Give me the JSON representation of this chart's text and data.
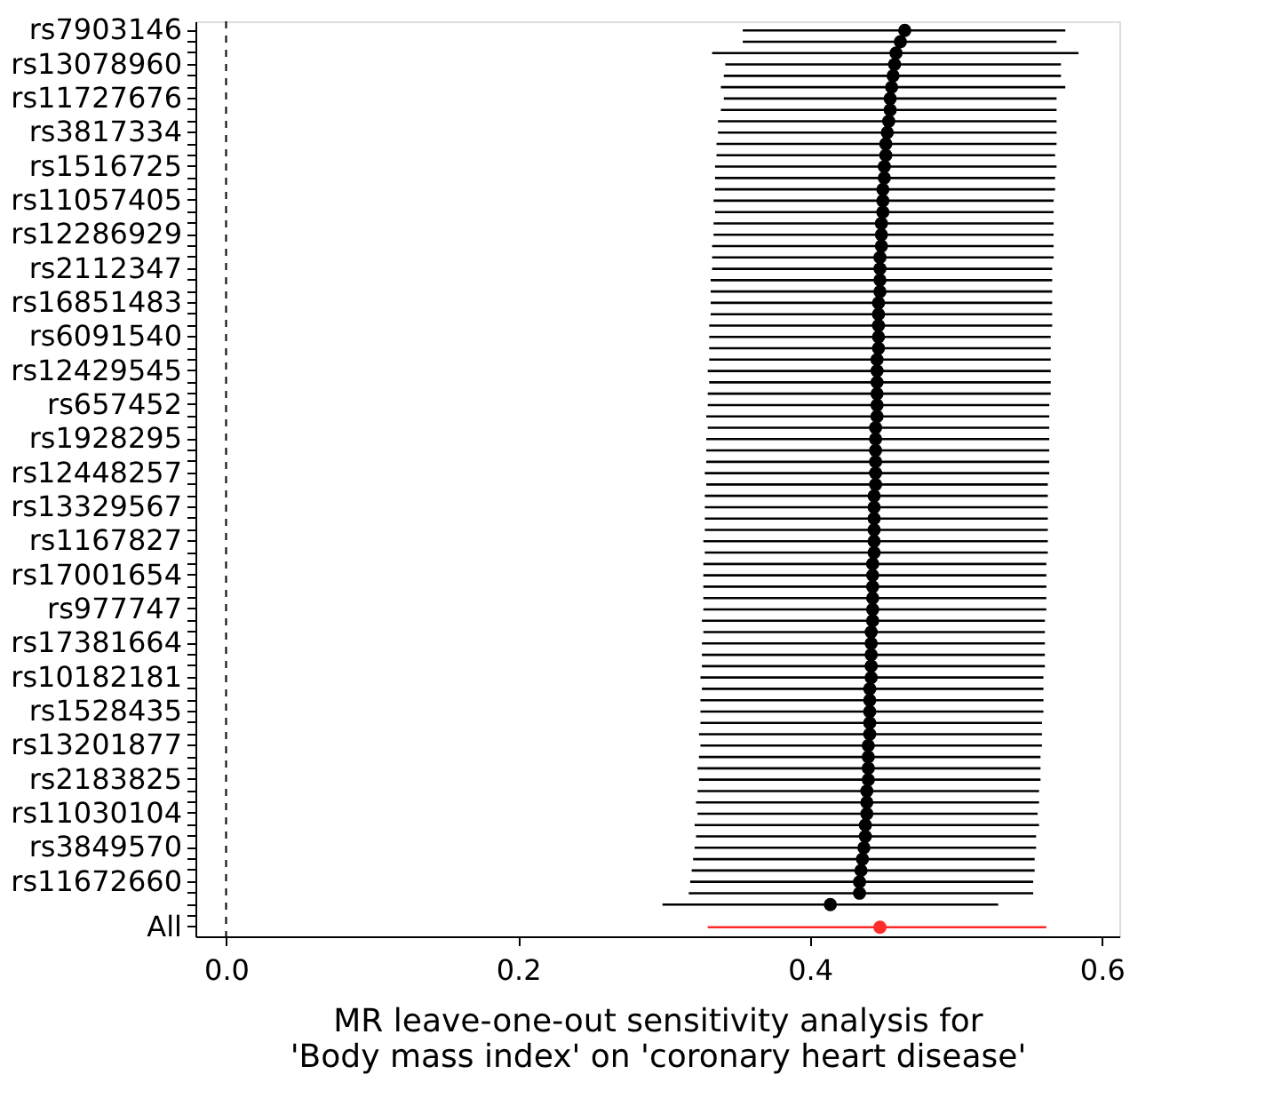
{
  "chart_data": {
    "type": "scatter",
    "categories": [
      "rs7903146",
      null,
      null,
      "rs13078960",
      null,
      null,
      "rs11727676",
      null,
      null,
      "rs3817334",
      null,
      null,
      "rs1516725",
      null,
      null,
      "rs11057405",
      null,
      null,
      "rs12286929",
      null,
      null,
      "rs2112347",
      null,
      null,
      "rs16851483",
      null,
      null,
      "rs6091540",
      null,
      null,
      "rs12429545",
      null,
      null,
      "rs657452",
      null,
      null,
      "rs1928295",
      null,
      null,
      "rs12448257",
      null,
      null,
      "rs13329567",
      null,
      null,
      "rs1167827",
      null,
      null,
      "rs17001654",
      null,
      null,
      "rs977747",
      null,
      null,
      "rs17381664",
      null,
      null,
      "rs10182181",
      null,
      null,
      "rs1528435",
      null,
      null,
      "rs13201877",
      null,
      null,
      "rs2183825",
      null,
      null,
      "rs11030104",
      null,
      null,
      "rs3849570",
      null,
      null,
      "rs11672660",
      null,
      null,
      null,
      "All"
    ],
    "series": [
      {
        "values": [
          0.465,
          0.462,
          0.459,
          0.458,
          0.457,
          0.456,
          0.455,
          0.455,
          0.454,
          0.453,
          0.452,
          0.452,
          0.451,
          0.451,
          0.45,
          0.45,
          0.45,
          0.449,
          0.449,
          0.449,
          0.448,
          0.448,
          0.448,
          0.448,
          0.447,
          0.447,
          0.447,
          0.447,
          0.447,
          0.446,
          0.446,
          0.446,
          0.446,
          0.446,
          0.446,
          0.445,
          0.445,
          0.445,
          0.445,
          0.445,
          0.445,
          0.444,
          0.444,
          0.444,
          0.444,
          0.444,
          0.444,
          0.443,
          0.443,
          0.443,
          0.443,
          0.443,
          0.443,
          0.442,
          0.442,
          0.442,
          0.442,
          0.442,
          0.441,
          0.441,
          0.441,
          0.441,
          0.441,
          0.44,
          0.44,
          0.44,
          0.44,
          0.439,
          0.439,
          0.439,
          0.438,
          0.438,
          0.437,
          0.436,
          0.435,
          0.434,
          0.434,
          0.414,
          null,
          0.448
        ],
        "errors": [
          [
            0.354,
            0.575
          ],
          [
            0.354,
            0.569
          ],
          [
            0.333,
            0.584
          ],
          [
            0.342,
            0.572
          ],
          [
            0.341,
            0.572
          ],
          [
            0.339,
            0.575
          ],
          [
            0.341,
            0.569
          ],
          [
            0.339,
            0.569
          ],
          [
            0.337,
            0.569
          ],
          [
            0.337,
            0.569
          ],
          [
            0.336,
            0.569
          ],
          [
            0.336,
            0.568
          ],
          [
            0.335,
            0.569
          ],
          [
            0.335,
            0.568
          ],
          [
            0.335,
            0.568
          ],
          [
            0.334,
            0.567
          ],
          [
            0.335,
            0.567
          ],
          [
            0.334,
            0.567
          ],
          [
            0.334,
            0.567
          ],
          [
            0.333,
            0.567
          ],
          [
            0.333,
            0.567
          ],
          [
            0.333,
            0.566
          ],
          [
            0.332,
            0.566
          ],
          [
            0.332,
            0.566
          ],
          [
            0.332,
            0.566
          ],
          [
            0.332,
            0.566
          ],
          [
            0.331,
            0.566
          ],
          [
            0.331,
            0.565
          ],
          [
            0.331,
            0.565
          ],
          [
            0.331,
            0.565
          ],
          [
            0.33,
            0.565
          ],
          [
            0.331,
            0.565
          ],
          [
            0.33,
            0.565
          ],
          [
            0.33,
            0.564
          ],
          [
            0.329,
            0.564
          ],
          [
            0.33,
            0.564
          ],
          [
            0.329,
            0.564
          ],
          [
            0.329,
            0.564
          ],
          [
            0.329,
            0.564
          ],
          [
            0.328,
            0.564
          ],
          [
            0.329,
            0.563
          ],
          [
            0.328,
            0.563
          ],
          [
            0.328,
            0.563
          ],
          [
            0.328,
            0.563
          ],
          [
            0.328,
            0.563
          ],
          [
            0.327,
            0.563
          ],
          [
            0.328,
            0.563
          ],
          [
            0.327,
            0.562
          ],
          [
            0.327,
            0.562
          ],
          [
            0.327,
            0.562
          ],
          [
            0.327,
            0.562
          ],
          [
            0.327,
            0.562
          ],
          [
            0.326,
            0.561
          ],
          [
            0.327,
            0.561
          ],
          [
            0.326,
            0.561
          ],
          [
            0.326,
            0.561
          ],
          [
            0.326,
            0.561
          ],
          [
            0.325,
            0.56
          ],
          [
            0.326,
            0.56
          ],
          [
            0.325,
            0.56
          ],
          [
            0.325,
            0.56
          ],
          [
            0.325,
            0.559
          ],
          [
            0.324,
            0.559
          ],
          [
            0.325,
            0.559
          ],
          [
            0.324,
            0.558
          ],
          [
            0.323,
            0.558
          ],
          [
            0.324,
            0.558
          ],
          [
            0.323,
            0.557
          ],
          [
            0.322,
            0.557
          ],
          [
            0.323,
            0.556
          ],
          [
            0.321,
            0.557
          ],
          [
            0.322,
            0.555
          ],
          [
            0.321,
            0.555
          ],
          [
            0.32,
            0.554
          ],
          [
            0.319,
            0.554
          ],
          [
            0.318,
            0.553
          ],
          [
            0.317,
            0.553
          ],
          [
            0.299,
            0.529
          ],
          null,
          [
            0.33,
            0.562
          ]
        ],
        "colors": [
          "#000000",
          "#000000",
          "#000000",
          "#000000",
          "#000000",
          "#000000",
          "#000000",
          "#000000",
          "#000000",
          "#000000",
          "#000000",
          "#000000",
          "#000000",
          "#000000",
          "#000000",
          "#000000",
          "#000000",
          "#000000",
          "#000000",
          "#000000",
          "#000000",
          "#000000",
          "#000000",
          "#000000",
          "#000000",
          "#000000",
          "#000000",
          "#000000",
          "#000000",
          "#000000",
          "#000000",
          "#000000",
          "#000000",
          "#000000",
          "#000000",
          "#000000",
          "#000000",
          "#000000",
          "#000000",
          "#000000",
          "#000000",
          "#000000",
          "#000000",
          "#000000",
          "#000000",
          "#000000",
          "#000000",
          "#000000",
          "#000000",
          "#000000",
          "#000000",
          "#000000",
          "#000000",
          "#000000",
          "#000000",
          "#000000",
          "#000000",
          "#000000",
          "#000000",
          "#000000",
          "#000000",
          "#000000",
          "#000000",
          "#000000",
          "#000000",
          "#000000",
          "#000000",
          "#000000",
          "#000000",
          "#000000",
          "#000000",
          "#000000",
          "#000000",
          "#000000",
          "#000000",
          "#000000",
          "#000000",
          "#000000",
          "#000000",
          "#ff2a2a"
        ]
      }
    ],
    "xlabel": "MR leave-one-out sensitivity analysis for\n'Body mass index' on 'coronary heart disease'",
    "xlim": [
      -0.021,
      0.612
    ],
    "xticks": [
      {
        "value": 0,
        "label": "0.0"
      },
      {
        "value": 0.2,
        "label": "0.2"
      },
      {
        "value": 0.4,
        "label": "0.4"
      },
      {
        "value": 0.6,
        "label": "0.6"
      }
    ],
    "ref_lines": [
      {
        "axis": "x",
        "value": 0,
        "line_style": "dashed",
        "color": "#000000"
      }
    ],
    "orientation": "horizontal",
    "marker": "circle",
    "grid": false
  }
}
